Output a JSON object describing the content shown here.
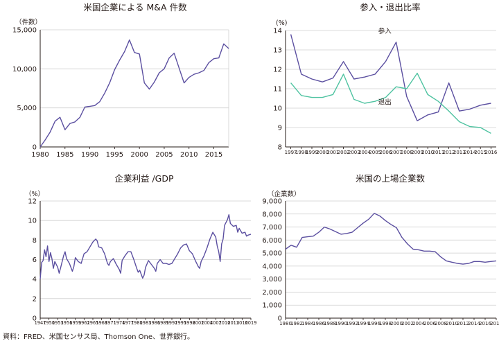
{
  "source_note": "資料：FRED、米国センサス局、Thomson One、世界銀行。",
  "colors": {
    "series_main": "#5b4fa0",
    "series_exit": "#4fc3a1",
    "axis": "#231815",
    "grid": "#cfcfcf"
  },
  "chart_data": [
    {
      "id": "ma",
      "type": "line",
      "title": "米国企業による M&A 件数",
      "unit_label": "（件数）",
      "xlabel": "",
      "ylabel": "",
      "grid": true,
      "xlim": [
        1980,
        2018
      ],
      "ylim": [
        0,
        15000
      ],
      "x_ticks": [
        1980,
        1985,
        1990,
        1995,
        2000,
        2005,
        2010,
        2015
      ],
      "y_ticks": [
        0,
        5000,
        10000,
        15000
      ],
      "y_tick_labels": [
        "0",
        "5,000",
        "10,000",
        "15,000"
      ],
      "series": [
        {
          "color": "#5b4fa0",
          "x": [
            1980,
            1981,
            1982,
            1983,
            1984,
            1985,
            1986,
            1987,
            1988,
            1989,
            1990,
            1991,
            1992,
            1993,
            1994,
            1995,
            1996,
            1997,
            1998,
            1999,
            2000,
            2001,
            2002,
            2003,
            2004,
            2005,
            2006,
            2007,
            2008,
            2009,
            2010,
            2011,
            2012,
            2013,
            2014,
            2015,
            2016,
            2017,
            2018
          ],
          "values": [
            0,
            900,
            1900,
            3300,
            3800,
            2200,
            3000,
            3200,
            3800,
            5100,
            5200,
            5300,
            5800,
            6900,
            8200,
            9900,
            11100,
            12200,
            13700,
            12100,
            11900,
            8200,
            7400,
            8300,
            9500,
            10000,
            11400,
            12000,
            10100,
            8200,
            8900,
            9300,
            9500,
            9800,
            10800,
            11300,
            11400,
            13200,
            12600
          ]
        }
      ]
    },
    {
      "id": "entry_exit",
      "type": "line",
      "title": "参入・退出比率",
      "unit_label": "(%)",
      "xlabel": "",
      "ylabel": "",
      "grid": true,
      "ylim": [
        8,
        14
      ],
      "y_ticks": [
        8,
        9,
        10,
        11,
        12,
        13,
        14
      ],
      "categories": [
        "1997",
        "1998",
        "1999",
        "2000",
        "2001",
        "2002",
        "2003",
        "2004",
        "2005",
        "2006",
        "2007",
        "2008",
        "2009",
        "2010",
        "2011",
        "2012",
        "2013",
        "2014",
        "2015",
        "2016"
      ],
      "series": [
        {
          "name": "参入",
          "color": "#5b4fa0",
          "values": [
            13.8,
            11.75,
            11.5,
            11.35,
            11.55,
            12.4,
            11.5,
            11.6,
            11.75,
            12.4,
            13.4,
            10.6,
            9.35,
            9.65,
            9.8,
            11.3,
            9.85,
            9.95,
            10.15,
            10.25
          ]
        },
        {
          "name": "退出",
          "color": "#4fc3a1",
          "values": [
            11.3,
            10.65,
            10.55,
            10.55,
            10.7,
            11.75,
            10.45,
            10.25,
            10.35,
            10.55,
            11.1,
            11.0,
            11.8,
            10.7,
            10.35,
            9.85,
            9.3,
            9.05,
            9.0,
            8.7
          ]
        }
      ]
    },
    {
      "id": "profit",
      "type": "line",
      "title": "企業利益 /GDP",
      "unit_label": "（%）",
      "xlabel": "",
      "ylabel": "",
      "grid": true,
      "xlim": [
        1947,
        2019
      ],
      "ylim": [
        0,
        12
      ],
      "y_ticks": [
        0,
        2,
        4,
        6,
        8,
        10,
        12
      ],
      "x_ticks": [
        1947,
        1950,
        1953,
        1956,
        1959,
        1962,
        1965,
        1968,
        1971,
        1974,
        1977,
        1980,
        1983,
        1986,
        1989,
        1992,
        1995,
        1998,
        2001,
        2004,
        2007,
        2010,
        2013,
        2016,
        2019
      ],
      "series": [
        {
          "color": "#5b4fa0",
          "x": [
            1947,
            1947.5,
            1948,
            1948.5,
            1949,
            1949.5,
            1950,
            1950.5,
            1951,
            1951.5,
            1952,
            1953,
            1953.5,
            1954,
            1955,
            1955.5,
            1956,
            1957,
            1958,
            1958.5,
            1959,
            1960,
            1961,
            1961.5,
            1962,
            1963,
            1964,
            1965,
            1966,
            1966.5,
            1967,
            1968,
            1969,
            1970,
            1970.5,
            1971,
            1972,
            1973,
            1974,
            1974.5,
            1975,
            1976,
            1977,
            1978,
            1979,
            1980,
            1980.5,
            1981,
            1982,
            1982.5,
            1983,
            1984,
            1985,
            1986,
            1986.5,
            1987,
            1988,
            1989,
            1990,
            1991,
            1992,
            1993,
            1994,
            1995,
            1996,
            1997,
            1998,
            1999,
            2000,
            2001,
            2001.5,
            2002,
            2003,
            2004,
            2005,
            2006,
            2007,
            2007.5,
            2008,
            2008.5,
            2009,
            2009.5,
            2010,
            2011,
            2011.5,
            2012,
            2013,
            2014,
            2014.5,
            2015,
            2016,
            2017,
            2017.5,
            2018,
            2019
          ],
          "values": [
            4.0,
            5.7,
            5.9,
            7.0,
            6.3,
            7.4,
            5.8,
            6.7,
            6.1,
            5.1,
            5.8,
            5.2,
            4.6,
            5.2,
            6.4,
            6.8,
            6.1,
            5.6,
            4.8,
            5.3,
            6.2,
            5.8,
            5.6,
            6.1,
            6.6,
            6.8,
            7.3,
            7.8,
            8.1,
            7.9,
            7.3,
            7.2,
            6.6,
            5.6,
            5.4,
            5.8,
            6.1,
            5.5,
            5.0,
            4.6,
            5.9,
            6.4,
            6.8,
            6.8,
            6.0,
            5.1,
            4.7,
            4.9,
            4.1,
            4.4,
            5.2,
            5.9,
            5.5,
            5.1,
            4.8,
            5.6,
            6.0,
            5.6,
            5.6,
            5.5,
            5.6,
            6.1,
            6.6,
            7.2,
            7.5,
            7.6,
            6.9,
            6.6,
            5.9,
            5.3,
            5.1,
            5.8,
            6.4,
            7.2,
            8.1,
            8.8,
            8.3,
            7.4,
            6.8,
            5.8,
            7.6,
            8.1,
            9.5,
            10.1,
            10.6,
            9.7,
            9.4,
            9.5,
            8.8,
            9.2,
            8.7,
            8.8,
            8.4,
            8.5,
            8.6
          ]
        }
      ]
    },
    {
      "id": "listed",
      "type": "line",
      "title": "米国の上場企業数",
      "unit_label": "（企業数）",
      "xlabel": "",
      "ylabel": "",
      "grid": true,
      "xlim": [
        1980,
        2018
      ],
      "ylim": [
        0,
        9000
      ],
      "y_ticks": [
        0,
        1000,
        2000,
        3000,
        4000,
        5000,
        6000,
        7000,
        8000,
        9000
      ],
      "y_tick_labels": [
        "0",
        "1,000",
        "2,000",
        "3,000",
        "4,000",
        "5,000",
        "6,000",
        "7,000",
        "8,000",
        "9,000"
      ],
      "x_ticks": [
        1980,
        1982,
        1984,
        1986,
        1988,
        1990,
        1992,
        1994,
        1996,
        1998,
        2000,
        2002,
        2004,
        2006,
        2008,
        2010,
        2012,
        2014,
        2016,
        2018
      ],
      "series": [
        {
          "color": "#5b4fa0",
          "x": [
            1980,
            1981,
            1982,
            1983,
            1984,
            1985,
            1986,
            1987,
            1988,
            1989,
            1990,
            1991,
            1992,
            1993,
            1994,
            1995,
            1996,
            1997,
            1998,
            1999,
            2000,
            2001,
            2002,
            2003,
            2004,
            2005,
            2006,
            2007,
            2008,
            2009,
            2010,
            2011,
            2012,
            2013,
            2014,
            2015,
            2016,
            2017,
            2018
          ],
          "values": [
            5300,
            5600,
            5450,
            6200,
            6250,
            6300,
            6600,
            7000,
            6850,
            6650,
            6450,
            6500,
            6600,
            6950,
            7300,
            7600,
            8050,
            7850,
            7500,
            7200,
            6950,
            6200,
            5700,
            5300,
            5250,
            5150,
            5150,
            5100,
            4700,
            4400,
            4300,
            4200,
            4150,
            4200,
            4350,
            4350,
            4300,
            4350,
            4400
          ]
        }
      ]
    }
  ]
}
